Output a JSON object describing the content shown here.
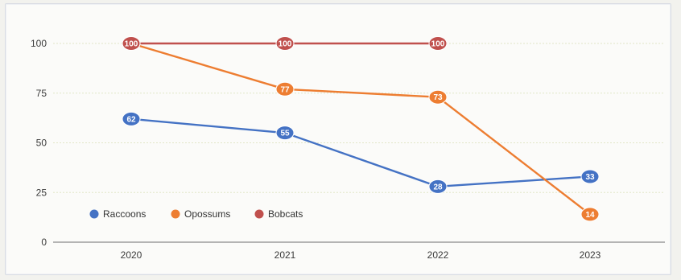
{
  "chart_data": {
    "type": "line",
    "title": "",
    "xlabel": "",
    "ylabel": "",
    "categories": [
      "2020",
      "2021",
      "2022",
      "2023"
    ],
    "ylim": [
      0,
      100
    ],
    "yticks": [
      "0",
      "25",
      "50",
      "75",
      "100"
    ],
    "grid": true,
    "legend_position": "bottom-left",
    "series": [
      {
        "name": "Raccoons",
        "color": "#4472c4",
        "values": [
          62,
          55,
          28,
          33
        ],
        "labels": [
          "62",
          "55",
          "28",
          "33"
        ]
      },
      {
        "name": "Opossums",
        "color": "#ed7d31",
        "values": [
          100,
          77,
          73,
          14
        ],
        "labels": [
          "100",
          "77",
          "73",
          "14"
        ]
      },
      {
        "name": "Bobcats",
        "color": "#c0504d",
        "values": [
          100,
          100,
          100,
          null
        ],
        "labels": [
          "100",
          "100",
          "100",
          null
        ]
      }
    ]
  }
}
